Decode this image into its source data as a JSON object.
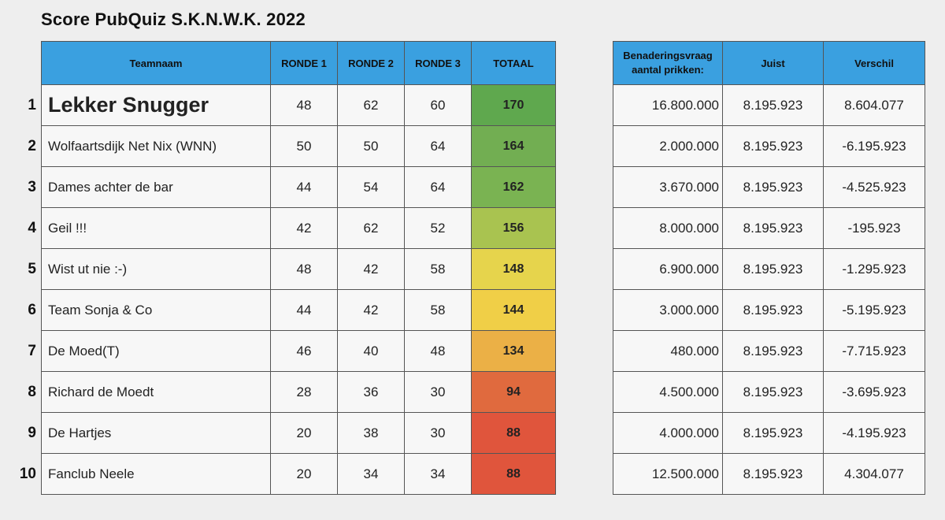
{
  "title": "Score PubQuiz S.K.N.W.K. 2022",
  "main_headers": {
    "team": "Teamnaam",
    "r1": "RONDE 1",
    "r2": "RONDE 2",
    "r3": "RONDE 3",
    "total": "TOTAAL"
  },
  "right_headers": {
    "estimate": "Benaderingsvraag aantal prikken:",
    "correct": "Juist",
    "difference": "Verschil"
  },
  "rows": [
    {
      "rank": "1",
      "team": "Lekker Snugger",
      "r1": "48",
      "r2": "62",
      "r3": "60",
      "total": "170",
      "total_color": "#5fa84e",
      "estimate": "16.800.000",
      "correct": "8.195.923",
      "difference": "8.604.077"
    },
    {
      "rank": "2",
      "team": "Wolfaartsdijk Net Nix (WNN)",
      "r1": "50",
      "r2": "50",
      "r3": "64",
      "total": "164",
      "total_color": "#72ae52",
      "estimate": "2.000.000",
      "correct": "8.195.923",
      "difference": "-6.195.923"
    },
    {
      "rank": "3",
      "team": "Dames achter de bar",
      "r1": "44",
      "r2": "54",
      "r3": "64",
      "total": "162",
      "total_color": "#7ab352",
      "estimate": "3.670.000",
      "correct": "8.195.923",
      "difference": "-4.525.923"
    },
    {
      "rank": "4",
      "team": "Geil !!!",
      "r1": "42",
      "r2": "62",
      "r3": "52",
      "total": "156",
      "total_color": "#a9c350",
      "estimate": "8.000.000",
      "correct": "8.195.923",
      "difference": "-195.923"
    },
    {
      "rank": "5",
      "team": "Wist ut nie :-)",
      "r1": "48",
      "r2": "42",
      "r3": "58",
      "total": "148",
      "total_color": "#e6d44c",
      "estimate": "6.900.000",
      "correct": "8.195.923",
      "difference": "-1.295.923"
    },
    {
      "rank": "6",
      "team": "Team Sonja & Co",
      "r1": "44",
      "r2": "42",
      "r3": "58",
      "total": "144",
      "total_color": "#f0cf47",
      "estimate": "3.000.000",
      "correct": "8.195.923",
      "difference": "-5.195.923"
    },
    {
      "rank": "7",
      "team": "De Moed(T)",
      "r1": "46",
      "r2": "40",
      "r3": "48",
      "total": "134",
      "total_color": "#ebb046",
      "estimate": "480.000",
      "correct": "8.195.923",
      "difference": "-7.715.923"
    },
    {
      "rank": "8",
      "team": "Richard de Moedt",
      "r1": "28",
      "r2": "36",
      "r3": "30",
      "total": "94",
      "total_color": "#e06a3e",
      "estimate": "4.500.000",
      "correct": "8.195.923",
      "difference": "-3.695.923"
    },
    {
      "rank": "9",
      "team": "De Hartjes",
      "r1": "20",
      "r2": "38",
      "r3": "30",
      "total": "88",
      "total_color": "#e0553c",
      "estimate": "4.000.000",
      "correct": "8.195.923",
      "difference": "-4.195.923"
    },
    {
      "rank": "10",
      "team": "Fanclub Neele",
      "r1": "20",
      "r2": "34",
      "r3": "34",
      "total": "88",
      "total_color": "#e0553c",
      "estimate": "12.500.000",
      "correct": "8.195.923",
      "difference": "4.304.077"
    }
  ]
}
